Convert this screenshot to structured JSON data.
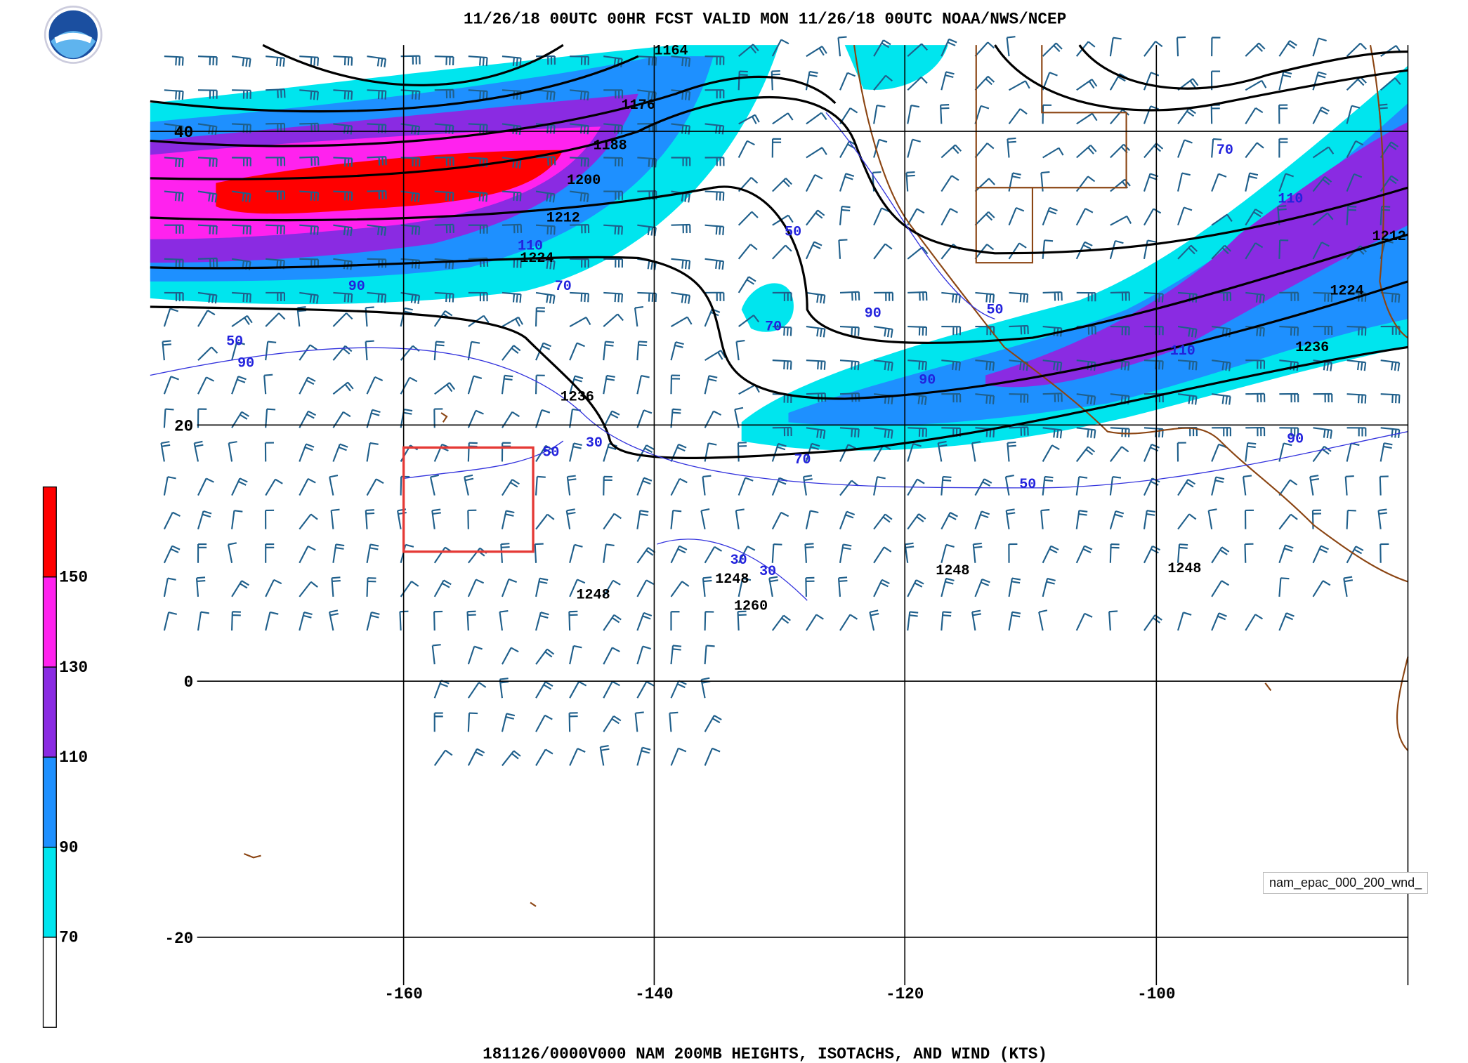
{
  "header": {
    "title": "11/26/18 00UTC 00HR FCST VALID MON 11/26/18 00UTC NOAA/NWS/NCEP"
  },
  "footer": {
    "caption": "181126/0000V000 NAM 200MB HEIGHTS, ISOTACHS, AND WIND (KTS)"
  },
  "colorbar": {
    "labels": [
      "150",
      "130",
      "110",
      "90",
      "70"
    ],
    "colors": [
      "#ff0000",
      "#ff22ee",
      "#8a2be2",
      "#1e90ff",
      "#00e5ee",
      "#ffffff"
    ]
  },
  "axes": {
    "lon_labels": [
      "-160",
      "-140",
      "-120",
      "-100"
    ],
    "lat_labels": [
      "40",
      "20",
      "0",
      "-20"
    ]
  },
  "height_labels": [
    "1164",
    "1176",
    "1188",
    "1200",
    "1212",
    "1224",
    "1236",
    "1248",
    "1248",
    "1260",
    "1248",
    "1248",
    "1212",
    "1224",
    "1236"
  ],
  "isotach_labels": [
    "90",
    "70",
    "110",
    "50",
    "90",
    "50",
    "70",
    "90",
    "50",
    "90",
    "70",
    "30",
    "50",
    "50",
    "90",
    "110",
    "110",
    "70",
    "30",
    "30"
  ],
  "tooltip": {
    "text": "nam_epac_000_200_wnd_"
  }
}
